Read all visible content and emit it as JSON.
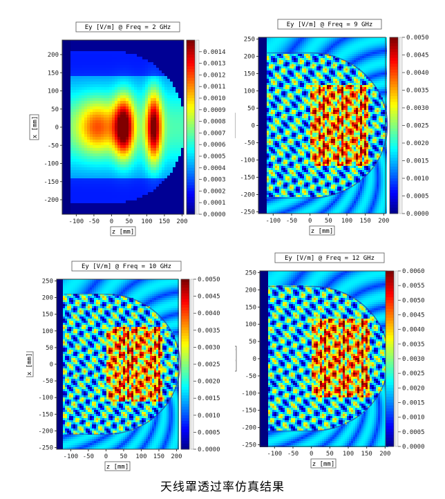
{
  "caption": "天线罩透过率仿真结果",
  "chart_data": [
    {
      "type": "heatmap",
      "title": "Ey [V/m] @ Freq = 2 GHz",
      "xlabel": "z [mm]",
      "ylabel": "x [mm]",
      "xticks": [
        -100,
        -50,
        0,
        50,
        100,
        150,
        200
      ],
      "yticks": [
        200,
        150,
        100,
        50,
        0,
        -50,
        -100,
        -150,
        -200
      ],
      "xlim": [
        -140,
        205
      ],
      "ylim": [
        -240,
        240
      ],
      "colorbar_ticks": [
        "0.0014",
        "0.0013",
        "0.0012",
        "0.0011",
        "0.0010",
        "0.0009",
        "0.0008",
        "0.0007",
        "0.0006",
        "0.0005",
        "0.0004",
        "0.0003",
        "0.0002",
        "0.0001",
        "0.0000"
      ],
      "colorbar_range": [
        0,
        0.0015
      ],
      "pattern": "smooth"
    },
    {
      "type": "heatmap",
      "title": "Ey [V/m] @ Freq = 9 GHz",
      "xlabel": "z [mm]",
      "ylabel": "x [mm]",
      "xticks": [
        -100,
        -50,
        0,
        50,
        100,
        150,
        200
      ],
      "yticks": [
        250,
        200,
        150,
        100,
        50,
        0,
        -50,
        -100,
        -150,
        -200,
        -250
      ],
      "xlim": [
        -140,
        205
      ],
      "ylim": [
        -255,
        255
      ],
      "colorbar_ticks": [
        "0.0050",
        "0.0045",
        "0.0040",
        "0.0035",
        "0.0030",
        "0.0025",
        "0.0020",
        "0.0015",
        "0.0010",
        "0.0005",
        "0.0000"
      ],
      "colorbar_range": [
        0,
        0.005
      ],
      "pattern": "speckle"
    },
    {
      "type": "heatmap",
      "title": "Ey [V/m] @ Freq = 10 GHz",
      "xlabel": "z [mm]",
      "ylabel": "x [mm]",
      "xticks": [
        -100,
        -50,
        0,
        50,
        100,
        150,
        200
      ],
      "yticks": [
        250,
        200,
        150,
        100,
        50,
        0,
        -50,
        -100,
        -150,
        -200,
        -250
      ],
      "xlim": [
        -140,
        205
      ],
      "ylim": [
        -255,
        255
      ],
      "colorbar_ticks": [
        "0.0050",
        "0.0045",
        "0.0040",
        "0.0035",
        "0.0030",
        "0.0025",
        "0.0020",
        "0.0015",
        "0.0010",
        "0.0005",
        "0.0000"
      ],
      "colorbar_range": [
        0,
        0.005
      ],
      "pattern": "speckle"
    },
    {
      "type": "heatmap",
      "title": "Ey [V/m] @ Freq = 12 GHz",
      "xlabel": "z [mm]",
      "ylabel": "x [mm]",
      "xticks": [
        -100,
        -50,
        0,
        50,
        100,
        150,
        200
      ],
      "yticks": [
        250,
        200,
        150,
        100,
        50,
        0,
        -50,
        -100,
        -150,
        -200,
        -250
      ],
      "xlim": [
        -140,
        205
      ],
      "ylim": [
        -255,
        255
      ],
      "colorbar_ticks": [
        "0.0060",
        "0.0055",
        "0.0050",
        "0.0045",
        "0.0040",
        "0.0035",
        "0.0030",
        "0.0025",
        "0.0020",
        "0.0015",
        "0.0010",
        "0.0005",
        "0.0000"
      ],
      "colorbar_range": [
        0,
        0.006
      ],
      "pattern": "speckle"
    }
  ]
}
